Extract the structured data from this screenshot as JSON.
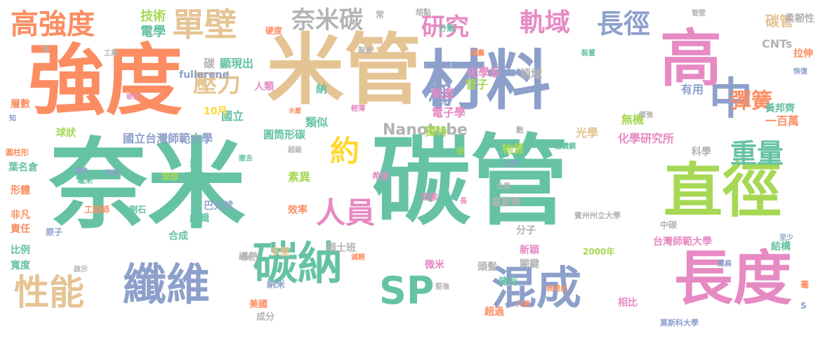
{
  "palette": {
    "teal": "#66c2a5",
    "orange": "#fc8d62",
    "blue": "#8da0cb",
    "pink": "#e78ac3",
    "lime": "#a6d854",
    "yellow": "#ffd92f",
    "tan": "#e5c494",
    "gray": "#b3b3b3"
  },
  "words": [
    {
      "text": "奈米",
      "color": "#66c2a5",
      "size": 10
    },
    {
      "text": "碳管",
      "color": "#66c2a5",
      "size": 10
    },
    {
      "text": "強度",
      "color": "#fc8d62",
      "size": 10
    },
    {
      "text": "米管",
      "color": "#e5c494",
      "size": 10
    },
    {
      "text": "材料",
      "color": "#8da0cb",
      "size": 10
    },
    {
      "text": "高",
      "color": "#e78ac3",
      "size": 10
    },
    {
      "text": "中",
      "color": "#8da0cb",
      "size": 10
    },
    {
      "text": "直徑",
      "color": "#a6d854",
      "size": 10
    },
    {
      "text": "長度",
      "color": "#e78ac3",
      "size": 10
    },
    {
      "text": "碳納",
      "color": "#66c2a5",
      "size": 10
    },
    {
      "text": "SP",
      "color": "#66c2a5",
      "size": 10
    },
    {
      "text": "混成",
      "color": "#8da0cb",
      "size": 10
    },
    {
      "text": "纖維",
      "color": "#8da0cb",
      "size": 10
    },
    {
      "text": "性能",
      "color": "#e5c494",
      "size": 10
    },
    {
      "text": "高強度",
      "color": "#fc8d62",
      "size": 10
    },
    {
      "text": "單壁",
      "color": "#e5c494",
      "size": 10
    },
    {
      "text": "奈米碳",
      "color": "#b3b3b3",
      "size": 10
    },
    {
      "text": "研究",
      "color": "#e78ac3",
      "size": 10
    },
    {
      "text": "軌域",
      "color": "#e78ac3",
      "size": 10
    },
    {
      "text": "長徑",
      "color": "#8da0cb",
      "size": 10
    },
    {
      "text": "重量",
      "color": "#66c2a5",
      "size": 10
    },
    {
      "text": "彈簧",
      "color": "#fc8d62",
      "size": 10
    },
    {
      "text": "約",
      "color": "#ffd92f",
      "size": 10
    },
    {
      "text": "人員",
      "color": "#e78ac3",
      "size": 10
    },
    {
      "text": "壓力",
      "color": "#e5c494",
      "size": 10
    },
    {
      "text": "稱",
      "color": "#8da0cb",
      "size": 10
    },
    {
      "text": "Nanotube",
      "color": "#b3b3b3",
      "size": 10
    },
    {
      "text": "技術",
      "color": "#a6d854",
      "size": 10
    },
    {
      "text": "電學",
      "color": "#66c2a5",
      "size": 10
    },
    {
      "text": "碳管",
      "color": "#e5c494",
      "size": 10
    },
    {
      "text": "CNTs",
      "color": "#b3b3b3",
      "size": 10
    },
    {
      "text": "化學系",
      "color": "#e78ac3",
      "size": 10
    },
    {
      "text": "領域",
      "color": "#b3b3b3",
      "size": 10
    },
    {
      "text": "管子",
      "color": "#a6d854",
      "size": 10
    },
    {
      "text": "碳",
      "color": "#b3b3b3",
      "size": 10
    },
    {
      "text": "顯現出",
      "color": "#66c2a5",
      "size": 10
    },
    {
      "text": "fullerene",
      "color": "#8da0cb",
      "size": 10
    },
    {
      "text": "人類",
      "color": "#e78ac3",
      "size": 10
    },
    {
      "text": "納",
      "color": "#66c2a5",
      "size": 10
    },
    {
      "text": "軌道",
      "color": "#e78ac3",
      "size": 10
    },
    {
      "text": "電子學",
      "color": "#e78ac3",
      "size": 10
    },
    {
      "text": "有用",
      "color": "#8da0cb",
      "size": 10
    },
    {
      "text": "黃邦齊",
      "color": "#66c2a5",
      "size": 10
    },
    {
      "text": "一百萬",
      "color": "#fc8d62",
      "size": 10
    },
    {
      "text": "國立",
      "color": "#66c2a5",
      "size": 10
    },
    {
      "text": "類似",
      "color": "#66c2a5",
      "size": 10
    },
    {
      "text": "獨特",
      "color": "#a6d854",
      "size": 10
    },
    {
      "text": "無機",
      "color": "#a6d854",
      "size": 10
    },
    {
      "text": "光學",
      "color": "#e5c494",
      "size": 10
    },
    {
      "text": "化學研究所",
      "color": "#e78ac3",
      "size": 10
    },
    {
      "text": "國立台灣師範大學",
      "color": "#8da0cb",
      "size": 10
    },
    {
      "text": "圓筒形碳",
      "color": "#66c2a5",
      "size": 10
    },
    {
      "text": "物質",
      "color": "#a6d854",
      "size": 10
    },
    {
      "text": "科學",
      "color": "#b3b3b3",
      "size": 10
    },
    {
      "text": "球狀",
      "color": "#a6d854",
      "size": 10
    },
    {
      "text": "10月",
      "color": "#ffd92f",
      "size": 10
    },
    {
      "text": "層數",
      "color": "#fc8d62",
      "size": 10
    },
    {
      "text": "葉名倉",
      "color": "#66c2a5",
      "size": 10
    },
    {
      "text": "圓柱形",
      "color": "#fc8d62",
      "size": 10
    },
    {
      "text": "形體",
      "color": "#fc8d62",
      "size": 10
    },
    {
      "text": "非凡",
      "color": "#fc8d62",
      "size": 10
    },
    {
      "text": "責任",
      "color": "#fc8d62",
      "size": 10
    },
    {
      "text": "比例",
      "color": "#66c2a5",
      "size": 10
    },
    {
      "text": "寬度",
      "color": "#66c2a5",
      "size": 10
    },
    {
      "text": "原子",
      "color": "#8da0cb",
      "size": 10
    },
    {
      "text": "毫米",
      "color": "#66c2a5",
      "size": 10
    },
    {
      "text": "工程師",
      "color": "#fc8d62",
      "size": 10
    },
    {
      "text": "金剛石",
      "color": "#66c2a5",
      "size": 10
    },
    {
      "text": "教授",
      "color": "#66c2a5",
      "size": 10
    },
    {
      "text": "理想",
      "color": "#a6d854",
      "size": 10
    },
    {
      "text": "巴克球",
      "color": "#8da0cb",
      "size": 10
    },
    {
      "text": "編輯",
      "color": "#66c2a5",
      "size": 10
    },
    {
      "text": "合成",
      "color": "#66c2a5",
      "size": 10
    },
    {
      "text": "素異",
      "color": "#a6d854",
      "size": 10
    },
    {
      "text": "效率",
      "color": "#fc8d62",
      "size": 10
    },
    {
      "text": "碩士班",
      "color": "#b3b3b3",
      "size": 10
    },
    {
      "text": "導熱",
      "color": "#b3b3b3",
      "size": 10
    },
    {
      "text": "多壁",
      "color": "#e5c494",
      "size": 10
    },
    {
      "text": "富勒烯",
      "color": "#b3b3b3",
      "size": 10
    },
    {
      "text": "分子",
      "color": "#b3b3b3",
      "size": 10
    },
    {
      "text": "新穎",
      "color": "#e78ac3",
      "size": 10
    },
    {
      "text": "微米",
      "color": "#e78ac3",
      "size": 10
    },
    {
      "text": "頭髮",
      "color": "#b3b3b3",
      "size": 10
    },
    {
      "text": "關鍵",
      "color": "#b3b3b3",
      "size": 10
    },
    {
      "text": "2000年",
      "color": "#a6d854",
      "size": 10
    },
    {
      "text": "台灣師範大學",
      "color": "#e78ac3",
      "size": 10
    },
    {
      "text": "結構",
      "color": "#66c2a5",
      "size": 10
    },
    {
      "text": "賓州州立大學",
      "color": "#b3b3b3",
      "size": 10
    },
    {
      "text": "超過",
      "color": "#fc8d62",
      "size": 10
    },
    {
      "text": "相比",
      "color": "#e78ac3",
      "size": 10
    },
    {
      "text": "擁有",
      "color": "#66c2a5",
      "size": 10
    },
    {
      "text": "美國",
      "color": "#fc8d62",
      "size": 10
    },
    {
      "text": "成分",
      "color": "#b3b3b3",
      "size": 10
    },
    {
      "text": "納米",
      "color": "#8da0cb",
      "size": 10
    },
    {
      "text": "莫斯科大學",
      "color": "#8da0cb",
      "size": 10
    },
    {
      "text": "拉伸",
      "color": "#fc8d62",
      "size": 10
    },
    {
      "text": "柔韌性",
      "color": "#b3b3b3",
      "size": 10
    },
    {
      "text": "恢復",
      "color": "#8da0cb",
      "size": 10
    },
    {
      "text": "分類",
      "color": "#66c2a5",
      "size": 10
    },
    {
      "text": "硬度",
      "color": "#fc8d62",
      "size": 10
    },
    {
      "text": "常",
      "color": "#b3b3b3",
      "size": 10
    },
    {
      "text": "熔點",
      "color": "#b3b3b3",
      "size": 10
    },
    {
      "text": "製造",
      "color": "#b3b3b3",
      "size": 10
    },
    {
      "text": "減震",
      "color": "#fc8d62",
      "size": 10
    },
    {
      "text": "裝置",
      "color": "#66c2a5",
      "size": 10
    },
    {
      "text": "管壁",
      "color": "#b3b3b3",
      "size": 10
    },
    {
      "text": "工業",
      "color": "#b3b3b3",
      "size": 10
    },
    {
      "text": "韌性",
      "color": "#e78ac3",
      "size": 10
    },
    {
      "text": "水壓",
      "color": "#fc8d62",
      "size": 10
    },
    {
      "text": "輕薄",
      "color": "#e78ac3",
      "size": 10
    },
    {
      "text": "水",
      "color": "#8da0cb",
      "size": 10
    },
    {
      "text": "增強",
      "color": "#b3b3b3",
      "size": 10
    },
    {
      "text": "數",
      "color": "#b3b3b3",
      "size": 10
    },
    {
      "text": "倍",
      "color": "#a6d854",
      "size": 10
    },
    {
      "text": "體積鋼",
      "color": "#66c2a5",
      "size": 10
    },
    {
      "text": "比同",
      "color": "#8da0cb",
      "size": 10
    },
    {
      "text": "超級",
      "color": "#b3b3b3",
      "size": 10
    },
    {
      "text": "撤去",
      "color": "#66c2a5",
      "size": 10
    },
    {
      "text": "型",
      "color": "#66c2a5",
      "size": 10
    },
    {
      "text": "汽車",
      "color": "#8da0cb",
      "size": 10
    },
    {
      "text": "希望",
      "color": "#e78ac3",
      "size": 10
    },
    {
      "text": "因素",
      "color": "#e78ac3",
      "size": 10
    },
    {
      "text": "公里",
      "color": "#b3b3b3",
      "size": 10
    },
    {
      "text": "長",
      "color": "#e78ac3",
      "size": 10
    },
    {
      "text": "中碳",
      "color": "#b3b3b3",
      "size": 10
    },
    {
      "text": "至少",
      "color": "#8da0cb",
      "size": 10
    },
    {
      "text": "壓扁",
      "color": "#8da0cb",
      "size": 10
    },
    {
      "text": "形狀",
      "color": "#b3b3b3",
      "size": 10
    },
    {
      "text": "減輕",
      "color": "#fc8d62",
      "size": 10
    },
    {
      "text": "啟示",
      "color": "#b3b3b3",
      "size": 10
    },
    {
      "text": "Pa",
      "color": "#8da0cb",
      "size": 10
    },
    {
      "text": "表現出",
      "color": "#fc8d62",
      "size": 10
    },
    {
      "text": "堅強",
      "color": "#b3b3b3",
      "size": 10
    },
    {
      "text": "火車",
      "color": "#fc8d62",
      "size": 10
    },
    {
      "text": "利用",
      "color": "#e78ac3",
      "size": 10
    },
    {
      "text": "毫",
      "color": "#fc8d62",
      "size": 10
    },
    {
      "text": "S",
      "color": "#8da0cb",
      "size": 10
    },
    {
      "text": "深",
      "color": "#b3b3b3",
      "size": 10
    },
    {
      "text": "管像",
      "color": "#8da0cb",
      "size": 10
    },
    {
      "text": "知",
      "color": "#8da0cb",
      "size": 10
    }
  ]
}
